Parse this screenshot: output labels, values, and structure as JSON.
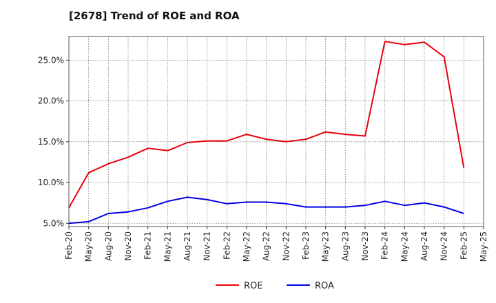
{
  "chart_data": {
    "type": "line",
    "title": "[2678]  Trend of ROE and ROA",
    "xlabel": "",
    "ylabel": "",
    "x_ticks": [
      "Feb-20",
      "May-20",
      "Aug-20",
      "Nov-20",
      "Feb-21",
      "May-21",
      "Aug-21",
      "Nov-21",
      "Feb-22",
      "May-22",
      "Aug-22",
      "Nov-22",
      "Feb-23",
      "May-23",
      "Aug-23",
      "Nov-23",
      "Feb-24",
      "May-24",
      "Aug-24",
      "Nov-24",
      "Feb-25",
      "May-25"
    ],
    "y_ticks": [
      "5.0%",
      "10.0%",
      "15.0%",
      "20.0%",
      "25.0%"
    ],
    "y_tick_values": [
      5,
      10,
      15,
      20,
      25
    ],
    "ylim": [
      4.6,
      27.9
    ],
    "grid": true,
    "legend_position": "bottom",
    "series": [
      {
        "name": "ROE",
        "color": "#e8000b",
        "values": [
          6.9,
          11.2,
          12.3,
          13.1,
          14.2,
          13.9,
          14.9,
          15.1,
          15.1,
          15.9,
          15.3,
          15.0,
          15.3,
          16.2,
          15.9,
          15.7,
          27.3,
          26.9,
          27.2,
          25.4,
          11.8
        ]
      },
      {
        "name": "ROA",
        "color": "#0000e6",
        "values": [
          5.0,
          5.2,
          6.2,
          6.4,
          6.9,
          7.7,
          8.2,
          7.9,
          7.4,
          7.6,
          7.6,
          7.4,
          7.0,
          7.0,
          7.0,
          7.2,
          7.7,
          7.2,
          7.5,
          7.0,
          6.2
        ]
      }
    ]
  }
}
